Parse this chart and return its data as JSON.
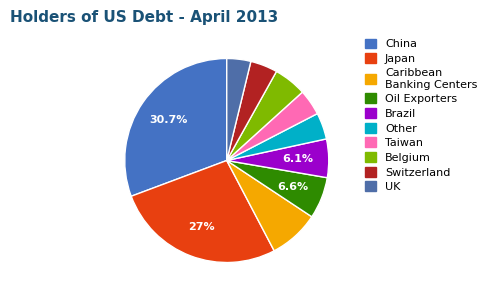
{
  "title": "Holders of US Debt - April 2013",
  "legend_labels": [
    "China",
    "Japan",
    "Caribbean\nBanking Centers",
    "Oil Exporters",
    "Brazil",
    "Other",
    "Taiwan",
    "Belgium",
    "Switzerland",
    "UK"
  ],
  "values": [
    30.7,
    27.0,
    8.0,
    6.6,
    6.1,
    4.2,
    4.1,
    5.2,
    4.3,
    3.8
  ],
  "colors": [
    "#4472C4",
    "#E84010",
    "#F5A800",
    "#2E8B00",
    "#9B00CC",
    "#00B0C8",
    "#FF69B4",
    "#7FBA00",
    "#B22222",
    "#4F6EA8"
  ],
  "autopct_labels": [
    "30.7%",
    "27%",
    "",
    "6.6%",
    "6.1%",
    "",
    "",
    "",
    "",
    ""
  ],
  "title_fontsize": 11,
  "legend_fontsize": 8,
  "startangle": 90
}
